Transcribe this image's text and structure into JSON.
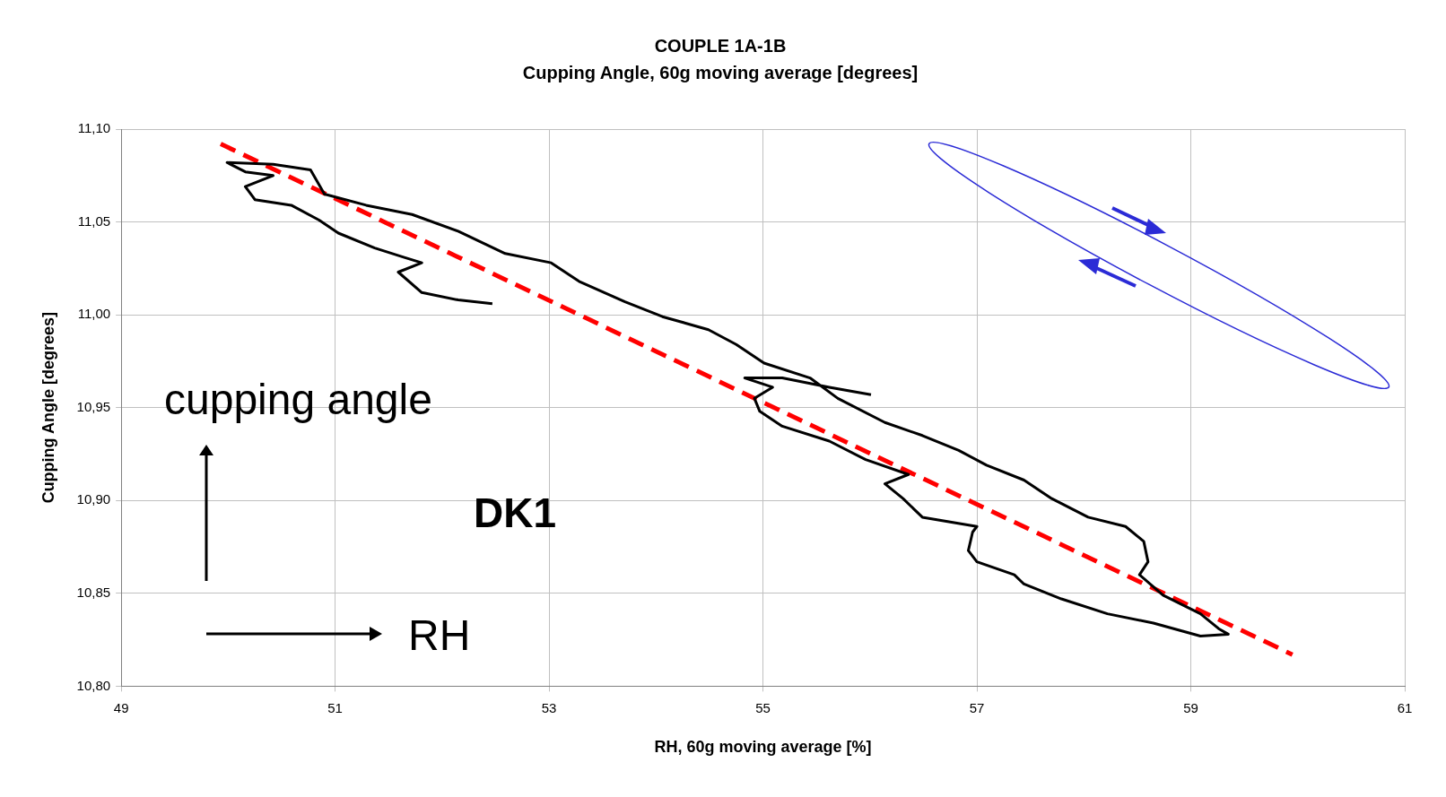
{
  "chart_data": {
    "type": "line",
    "title": "COUPLE 1A-1B",
    "subtitle": "Cupping Angle, 60g moving average [degrees]",
    "xlabel": "RH, 60g moving average [%]",
    "ylabel": "Cupping Angle [degrees]",
    "xlim": [
      49,
      61
    ],
    "xticks": [
      49,
      51,
      53,
      55,
      57,
      59,
      61
    ],
    "ylim": [
      10.8,
      11.1
    ],
    "yticks": [
      {
        "value": 10.8,
        "label": "10,80"
      },
      {
        "value": 10.85,
        "label": "10,85"
      },
      {
        "value": 10.9,
        "label": "10,90"
      },
      {
        "value": 10.95,
        "label": "10,95"
      },
      {
        "value": 11.0,
        "label": "11,00"
      },
      {
        "value": 11.05,
        "label": "11,05"
      },
      {
        "value": 11.1,
        "label": "11,10"
      }
    ],
    "grid": true,
    "legend": false,
    "marker": "none",
    "annotations": [
      "cupping angle",
      "RH",
      "DK1"
    ],
    "series": [
      {
        "color": "#000000",
        "line_style": "solid",
        "x": [
          52.47,
          52.15,
          51.81,
          51.59,
          51.81,
          51.64,
          51.37,
          51.03,
          50.85,
          50.59,
          50.25,
          50.16,
          50.42,
          50.16,
          49.99,
          50.42,
          50.77,
          50.9,
          51.29,
          51.72,
          52.15,
          52.59,
          53.02,
          53.28,
          53.71,
          54.06,
          54.49,
          54.75,
          55.01,
          55.44,
          55.7,
          56.14,
          56.49,
          56.83,
          57.09,
          57.44,
          57.7,
          58.04,
          58.39,
          58.56,
          58.6,
          58.52,
          58.74,
          59.09,
          59.26,
          59.35,
          59.09,
          58.65,
          58.22,
          57.79,
          57.44,
          57.35,
          57.0,
          56.92,
          56.96,
          57.0,
          56.49,
          56.31,
          56.14,
          56.36,
          55.96,
          55.62,
          55.18,
          54.97,
          54.92,
          55.09,
          54.83,
          55.18,
          55.62,
          56.01
        ],
        "values": [
          11.006,
          11.008,
          11.012,
          11.023,
          11.028,
          11.031,
          11.036,
          11.044,
          11.051,
          11.059,
          11.062,
          11.069,
          11.075,
          11.077,
          11.082,
          11.081,
          11.078,
          11.065,
          11.059,
          11.054,
          11.045,
          11.033,
          11.028,
          11.018,
          11.007,
          10.999,
          10.992,
          10.984,
          10.974,
          10.966,
          10.955,
          10.942,
          10.935,
          10.927,
          10.919,
          10.911,
          10.901,
          10.891,
          10.886,
          10.878,
          10.867,
          10.86,
          10.849,
          10.839,
          10.831,
          10.828,
          10.827,
          10.834,
          10.839,
          10.847,
          10.855,
          10.86,
          10.867,
          10.873,
          10.883,
          10.886,
          10.891,
          10.901,
          10.909,
          10.914,
          10.922,
          10.932,
          10.94,
          10.948,
          10.955,
          10.961,
          10.966,
          10.966,
          10.961,
          10.957
        ]
      },
      {
        "color": "#ff0000",
        "line_style": "dashed",
        "x": [
          49.93,
          59.95
        ],
        "values": [
          11.092,
          10.817
        ]
      }
    ]
  }
}
